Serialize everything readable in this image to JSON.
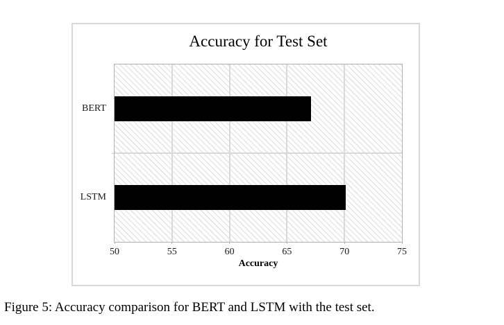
{
  "figure": {
    "caption": "Figure 5: Accuracy comparison for BERT and LSTM with the test set."
  },
  "chart_data": {
    "type": "bar",
    "orientation": "horizontal",
    "title": "Accuracy for Test Set",
    "categories": [
      "BERT",
      "LSTM"
    ],
    "values": [
      67.1,
      70.1
    ],
    "xlabel": "Accuracy",
    "ylabel": "",
    "xlim": [
      50,
      75
    ],
    "xticks": [
      50,
      55,
      60,
      65,
      70,
      75
    ],
    "grid": true,
    "legend": "none",
    "background_pattern": "diagonal-hatch",
    "colors": {
      "bar": "#000000",
      "grid": "#d9d9d9",
      "plot_border": "#b0b0b0",
      "box_border": "#d8d8d8",
      "hatch": "#e6e6e6",
      "text": "#000000"
    }
  }
}
